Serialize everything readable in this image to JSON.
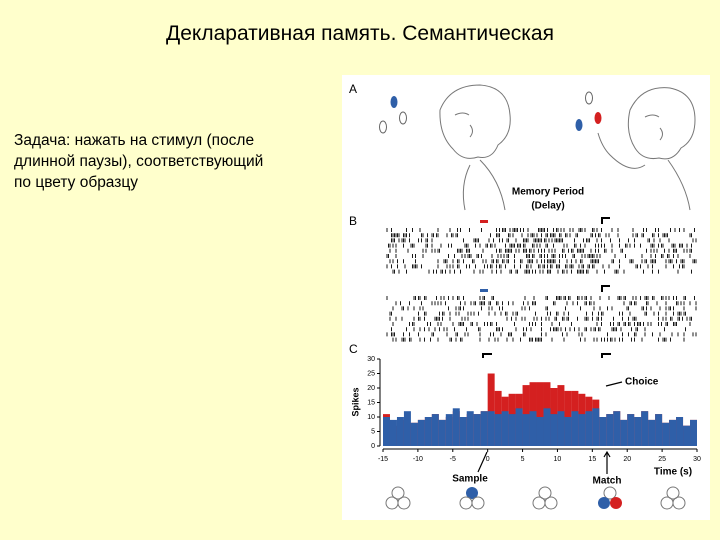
{
  "slide": {
    "title": "Декларативная память. Семантическая",
    "body": [
      "Задача: нажать на стимул (после",
      "длинной паузы), соответствующий",
      "по цвету образцу"
    ]
  },
  "figure": {
    "panel_labels": [
      "A",
      "B",
      "C"
    ],
    "memory_period": [
      "Memory Period",
      "(Delay)"
    ],
    "choice": "Choice",
    "sample": "Sample",
    "match": "Match"
  },
  "chart_data": {
    "type": "histogram",
    "xlabel": "Time (s)",
    "ylabel": "Spikes",
    "bins": [
      -15,
      -14,
      -13,
      -12,
      -11,
      -10,
      -9,
      -8,
      -7,
      -6,
      -5,
      -4,
      -3,
      -2,
      -1,
      0,
      1,
      2,
      3,
      4,
      5,
      6,
      7,
      8,
      9,
      10,
      11,
      12,
      13,
      14,
      15,
      16,
      17,
      18,
      19,
      20,
      21,
      22,
      23,
      24,
      25,
      26,
      27,
      28,
      29,
      30
    ],
    "series": [
      {
        "color": "#d42020",
        "values": [
          11,
          7,
          9,
          8,
          8,
          9,
          10,
          11,
          9,
          10,
          12,
          10,
          11,
          11,
          12,
          25,
          19,
          17,
          18,
          18,
          21,
          22,
          22,
          22,
          20,
          21,
          19,
          19,
          18,
          17,
          16,
          10,
          11,
          12,
          9,
          11,
          10,
          12,
          9,
          11,
          8,
          9,
          10,
          7,
          9
        ]
      },
      {
        "color": "#2f5fa8",
        "values": [
          10,
          9,
          10,
          12,
          8,
          9,
          10,
          11,
          9,
          11,
          13,
          10,
          12,
          11,
          12,
          12,
          11,
          12,
          11,
          13,
          11,
          12,
          10,
          13,
          11,
          12,
          10,
          12,
          11,
          12,
          13,
          10,
          11,
          12,
          9,
          11,
          10,
          12,
          9,
          11,
          8,
          9,
          10,
          7,
          9
        ]
      }
    ],
    "xlim": [
      -15,
      30
    ],
    "ylim": [
      0,
      30
    ],
    "xticks": [
      -15,
      -10,
      -5,
      0,
      5,
      10,
      15,
      20,
      25,
      30
    ],
    "yticks": [
      0,
      5,
      10,
      15,
      20,
      25,
      30
    ]
  }
}
